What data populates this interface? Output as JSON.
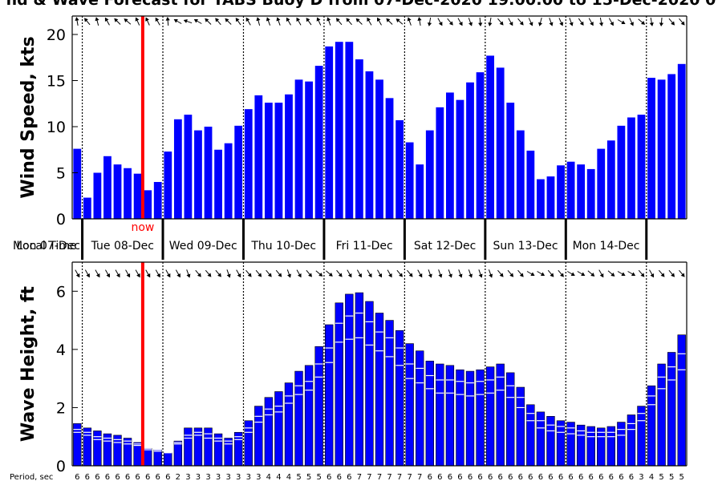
{
  "title": "nd & Wave Forecast for TABS Buoy D from 07-Dec-2020 19:00:00 to 15-Dec-2020 0",
  "now_label": "now",
  "period_label": "Period, sec",
  "colors": {
    "bar": "#0000ff",
    "now_line": "#ff0000",
    "axis": "#000000"
  },
  "icons": {
    "wind_direction": "arrow-icon",
    "wave_direction": "arrow-icon"
  },
  "day_labels": [
    "Mon 07-Dec",
    "Local Time",
    "Tue 08-Dec",
    "Wed 09-Dec",
    "Thu 10-Dec",
    "Fri 11-Dec",
    "Sat 12-Dec",
    "Sun 13-Dec",
    "Mon 14-Dec"
  ],
  "chart_data": [
    {
      "type": "bar",
      "ylabel": "Wind Speed, kts",
      "ylim": [
        0,
        22
      ],
      "yticks": [
        0,
        5,
        10,
        15,
        20
      ],
      "grid": false,
      "values": [
        7.6,
        2.3,
        5.0,
        6.8,
        5.9,
        5.5,
        4.9,
        3.1,
        4.0,
        7.3,
        10.8,
        11.3,
        9.6,
        10.0,
        7.5,
        8.2,
        10.1,
        11.9,
        13.4,
        12.6,
        12.6,
        13.5,
        15.1,
        14.9,
        16.6,
        18.7,
        19.2,
        19.2,
        17.3,
        16.0,
        15.1,
        13.1,
        10.7,
        8.3,
        5.9,
        9.6,
        12.1,
        13.7,
        12.9,
        14.8,
        15.9,
        17.7,
        16.4,
        12.6,
        9.6,
        7.4,
        4.3,
        4.6,
        5.8,
        6.2,
        5.9,
        5.4,
        7.6,
        8.5,
        10.1,
        11.0,
        11.3,
        15.3,
        15.1,
        15.7,
        16.8
      ],
      "wind_direction_deg": [
        170,
        140,
        165,
        150,
        135,
        130,
        155,
        155,
        150,
        175,
        120,
        110,
        120,
        135,
        140,
        135,
        145,
        150,
        165,
        160,
        160,
        150,
        150,
        145,
        155,
        160,
        140,
        140,
        135,
        150,
        150,
        135,
        130,
        160,
        170,
        10,
        330,
        320,
        330,
        340,
        355,
        10,
        320,
        330,
        320,
        335,
        15,
        340,
        335,
        340,
        325,
        330,
        350,
        330,
        300,
        335,
        310,
        350,
        5,
        320,
        320
      ],
      "now_index": 6,
      "day_boundaries": [
        1,
        9,
        17,
        25,
        33,
        41,
        49,
        57
      ]
    },
    {
      "type": "bar",
      "ylabel": "Wave Height, ft",
      "ylim": [
        0,
        7
      ],
      "yticks": [
        0,
        2,
        4,
        6
      ],
      "grid": false,
      "values": [
        1.45,
        1.3,
        1.2,
        1.1,
        1.05,
        0.95,
        0.8,
        0.6,
        0.55,
        0.45,
        0.85,
        1.3,
        1.3,
        1.3,
        1.1,
        0.95,
        1.15,
        1.55,
        2.05,
        2.35,
        2.55,
        2.85,
        3.25,
        3.45,
        4.1,
        4.85,
        5.6,
        5.9,
        5.95,
        5.65,
        5.25,
        5.0,
        4.65,
        4.2,
        3.95,
        3.6,
        3.5,
        3.45,
        3.3,
        3.25,
        3.3,
        3.4,
        3.5,
        3.2,
        2.7,
        2.1,
        1.85,
        1.7,
        1.55,
        1.5,
        1.4,
        1.35,
        1.3,
        1.35,
        1.5,
        1.75,
        2.05,
        2.75,
        3.5,
        3.9,
        4.5
      ],
      "secondary_height": [
        1.15,
        1.05,
        0.9,
        0.85,
        0.8,
        0.75,
        0.7,
        0.55,
        0.5,
        0.45,
        0.75,
        0.95,
        1.05,
        0.95,
        0.85,
        0.75,
        0.9,
        1.15,
        1.5,
        1.75,
        1.85,
        2.15,
        2.45,
        2.6,
        3.05,
        3.55,
        4.25,
        4.35,
        4.4,
        4.15,
        3.95,
        3.75,
        3.45,
        3.0,
        2.85,
        2.65,
        2.5,
        2.5,
        2.45,
        2.4,
        2.45,
        2.5,
        2.6,
        2.35,
        2.0,
        1.55,
        1.3,
        1.2,
        1.15,
        1.1,
        1.05,
        1.0,
        1.0,
        1.0,
        1.05,
        1.25,
        1.55,
        2.1,
        2.65,
        2.95,
        3.3
      ],
      "swell_height": [
        1.25,
        1.15,
        1.0,
        0.95,
        0.9,
        0.85,
        0.75,
        0.6,
        0.55,
        0.45,
        0.8,
        1.05,
        1.15,
        1.1,
        0.95,
        0.85,
        1.0,
        1.3,
        1.7,
        1.95,
        2.05,
        2.4,
        2.75,
        2.9,
        3.5,
        4.05,
        4.9,
        5.15,
        5.25,
        4.95,
        4.6,
        4.4,
        4.05,
        3.5,
        3.35,
        3.1,
        2.95,
        2.95,
        2.9,
        2.85,
        2.9,
        2.95,
        3.05,
        2.75,
        2.35,
        1.8,
        1.55,
        1.4,
        1.35,
        1.3,
        1.2,
        1.15,
        1.15,
        1.15,
        1.25,
        1.45,
        1.8,
        2.4,
        3.05,
        3.4,
        3.85
      ],
      "wave_direction_deg": [
        330,
        330,
        330,
        330,
        330,
        330,
        330,
        330,
        330,
        330,
        330,
        340,
        320,
        320,
        320,
        340,
        330,
        320,
        320,
        320,
        320,
        340,
        330,
        320,
        310,
        310,
        320,
        330,
        330,
        330,
        330,
        330,
        320,
        320,
        330,
        340,
        340,
        340,
        340,
        340,
        340,
        340,
        320,
        320,
        320,
        300,
        300,
        320,
        320,
        300,
        300,
        310,
        330,
        310,
        300,
        300,
        320,
        330,
        320,
        320,
        320
      ],
      "period_sec": [
        6,
        6,
        6,
        6,
        6,
        6,
        6,
        6,
        6,
        6,
        2,
        3,
        3,
        3,
        3,
        3,
        3,
        3,
        3,
        4,
        4,
        4,
        5,
        5,
        5,
        6,
        6,
        6,
        7,
        7,
        7,
        7,
        7,
        7,
        7,
        6,
        6,
        6,
        6,
        6,
        6,
        6,
        6,
        6,
        6,
        6,
        6,
        6,
        6,
        6,
        6,
        6,
        6,
        6,
        6,
        6,
        3,
        4,
        5,
        5,
        5
      ],
      "now_index": 6,
      "day_boundaries": [
        1,
        9,
        17,
        25,
        33,
        41,
        49,
        57
      ]
    }
  ]
}
